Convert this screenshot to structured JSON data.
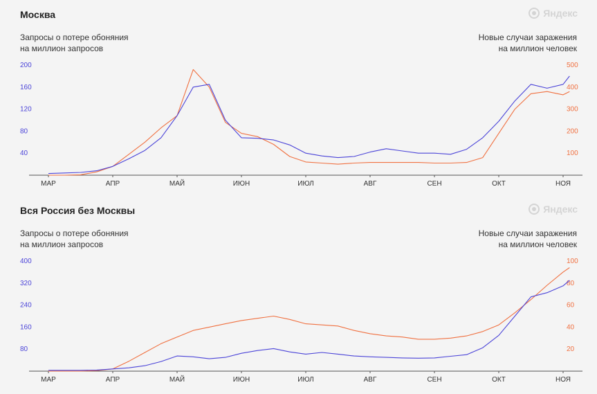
{
  "chart_data": [
    {
      "type": "line",
      "title": "Москва",
      "ylabel_left": [
        "Запросы о потере обоняния",
        "на миллион запросов"
      ],
      "ylabel_right": [
        "Новые случаи заражения",
        "на миллион человек"
      ],
      "x_tick_labels": [
        "МАР",
        "АПР",
        "МАЙ",
        "ИЮН",
        "ИЮЛ",
        "АВГ",
        "СЕН",
        "ОКТ",
        "НОЯ"
      ],
      "ylim_left": [
        0,
        200
      ],
      "yticks_left": [
        40,
        80,
        120,
        160,
        200
      ],
      "ylim_right": [
        0,
        500
      ],
      "yticks_right": [
        100,
        200,
        300,
        400,
        500
      ],
      "x": [
        0,
        0.25,
        0.5,
        0.75,
        1,
        1.25,
        1.5,
        1.75,
        2,
        2.25,
        2.5,
        2.75,
        3,
        3.25,
        3.5,
        3.75,
        4,
        4.25,
        4.5,
        4.75,
        5,
        5.25,
        5.5,
        5.75,
        6,
        6.25,
        6.5,
        6.75,
        7,
        7.25,
        7.5,
        7.75,
        8,
        8.1
      ],
      "series": [
        {
          "axis": "left",
          "color": "#4a43d8",
          "values": [
            3,
            4,
            5,
            8,
            16,
            30,
            45,
            68,
            108,
            160,
            165,
            100,
            68,
            67,
            64,
            55,
            40,
            35,
            32,
            34,
            42,
            48,
            44,
            40,
            40,
            38,
            47,
            68,
            98,
            135,
            165,
            158,
            165,
            180
          ]
        },
        {
          "axis": "right",
          "color": "#f07040",
          "values": [
            0,
            0,
            2,
            15,
            40,
            95,
            150,
            215,
            270,
            480,
            400,
            240,
            190,
            175,
            140,
            85,
            60,
            55,
            50,
            55,
            58,
            58,
            58,
            58,
            55,
            55,
            58,
            80,
            190,
            300,
            370,
            380,
            365,
            380
          ]
        }
      ]
    },
    {
      "type": "line",
      "title": "Вся Россия без Москвы",
      "ylabel_left": [
        "Запросы о потере обоняния",
        "на миллион запросов"
      ],
      "ylabel_right": [
        "Новые случаи заражения",
        "на миллион человек"
      ],
      "x_tick_labels": [
        "МАР",
        "АПР",
        "МАЙ",
        "ИЮН",
        "ИЮЛ",
        "АВГ",
        "СЕН",
        "ОКТ",
        "НОЯ"
      ],
      "ylim_left": [
        0,
        400
      ],
      "yticks_left": [
        80,
        160,
        240,
        320,
        400
      ],
      "ylim_right": [
        0,
        100
      ],
      "yticks_right": [
        20,
        40,
        60,
        80,
        100
      ],
      "x": [
        0,
        0.25,
        0.5,
        0.75,
        1,
        1.25,
        1.5,
        1.75,
        2,
        2.25,
        2.5,
        2.75,
        3,
        3.25,
        3.5,
        3.75,
        4,
        4.25,
        4.5,
        4.75,
        5,
        5.25,
        5.5,
        5.75,
        6,
        6.25,
        6.5,
        6.75,
        7,
        7.25,
        7.5,
        7.75,
        8,
        8.1
      ],
      "series": [
        {
          "axis": "left",
          "color": "#4a43d8",
          "values": [
            3,
            3,
            3,
            4,
            8,
            12,
            20,
            35,
            55,
            52,
            45,
            50,
            65,
            75,
            82,
            70,
            62,
            68,
            62,
            55,
            52,
            50,
            48,
            47,
            48,
            54,
            60,
            85,
            130,
            200,
            270,
            285,
            310,
            330
          ]
        },
        {
          "axis": "right",
          "color": "#f07040",
          "values": [
            0,
            0,
            0,
            0.5,
            2,
            9,
            17,
            25,
            31,
            37,
            40,
            43,
            46,
            48,
            50,
            47,
            43,
            42,
            41,
            37,
            34,
            32,
            31,
            29,
            29,
            30,
            32,
            36,
            42,
            53,
            65,
            78,
            90,
            94
          ]
        }
      ]
    }
  ]
}
